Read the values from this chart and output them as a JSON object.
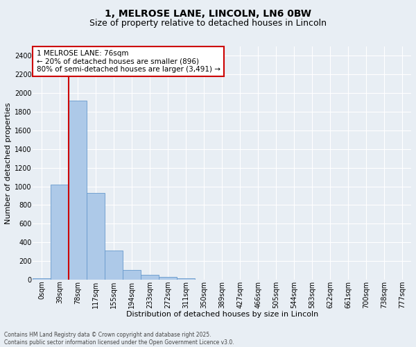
{
  "title1": "1, MELROSE LANE, LINCOLN, LN6 0BW",
  "title2": "Size of property relative to detached houses in Lincoln",
  "xlabel": "Distribution of detached houses by size in Lincoln",
  "ylabel": "Number of detached properties",
  "footer1": "Contains HM Land Registry data © Crown copyright and database right 2025.",
  "footer2": "Contains public sector information licensed under the Open Government Licence v3.0.",
  "categories": [
    "0sqm",
    "39sqm",
    "78sqm",
    "117sqm",
    "155sqm",
    "194sqm",
    "233sqm",
    "272sqm",
    "311sqm",
    "350sqm",
    "389sqm",
    "427sqm",
    "466sqm",
    "505sqm",
    "544sqm",
    "583sqm",
    "622sqm",
    "661sqm",
    "700sqm",
    "738sqm",
    "777sqm"
  ],
  "bar_values": [
    15,
    1020,
    1920,
    930,
    310,
    105,
    55,
    30,
    15,
    0,
    0,
    0,
    0,
    0,
    0,
    0,
    0,
    0,
    0,
    0,
    0
  ],
  "bar_color": "#adc9e8",
  "bar_edge_color": "#6699cc",
  "annotation_text": "1 MELROSE LANE: 76sqm\n← 20% of detached houses are smaller (896)\n80% of semi-detached houses are larger (3,491) →",
  "annotation_box_color": "#ffffff",
  "annotation_box_edge": "#cc0000",
  "vline_color": "#cc0000",
  "ylim": [
    0,
    2500
  ],
  "yticks": [
    0,
    200,
    400,
    600,
    800,
    1000,
    1200,
    1400,
    1600,
    1800,
    2000,
    2200,
    2400
  ],
  "bg_color": "#e8eef4",
  "grid_color": "#ffffff",
  "title_fontsize": 10,
  "subtitle_fontsize": 9,
  "axis_label_fontsize": 8,
  "tick_fontsize": 7,
  "annotation_fontsize": 7.5,
  "footer_fontsize": 5.5
}
